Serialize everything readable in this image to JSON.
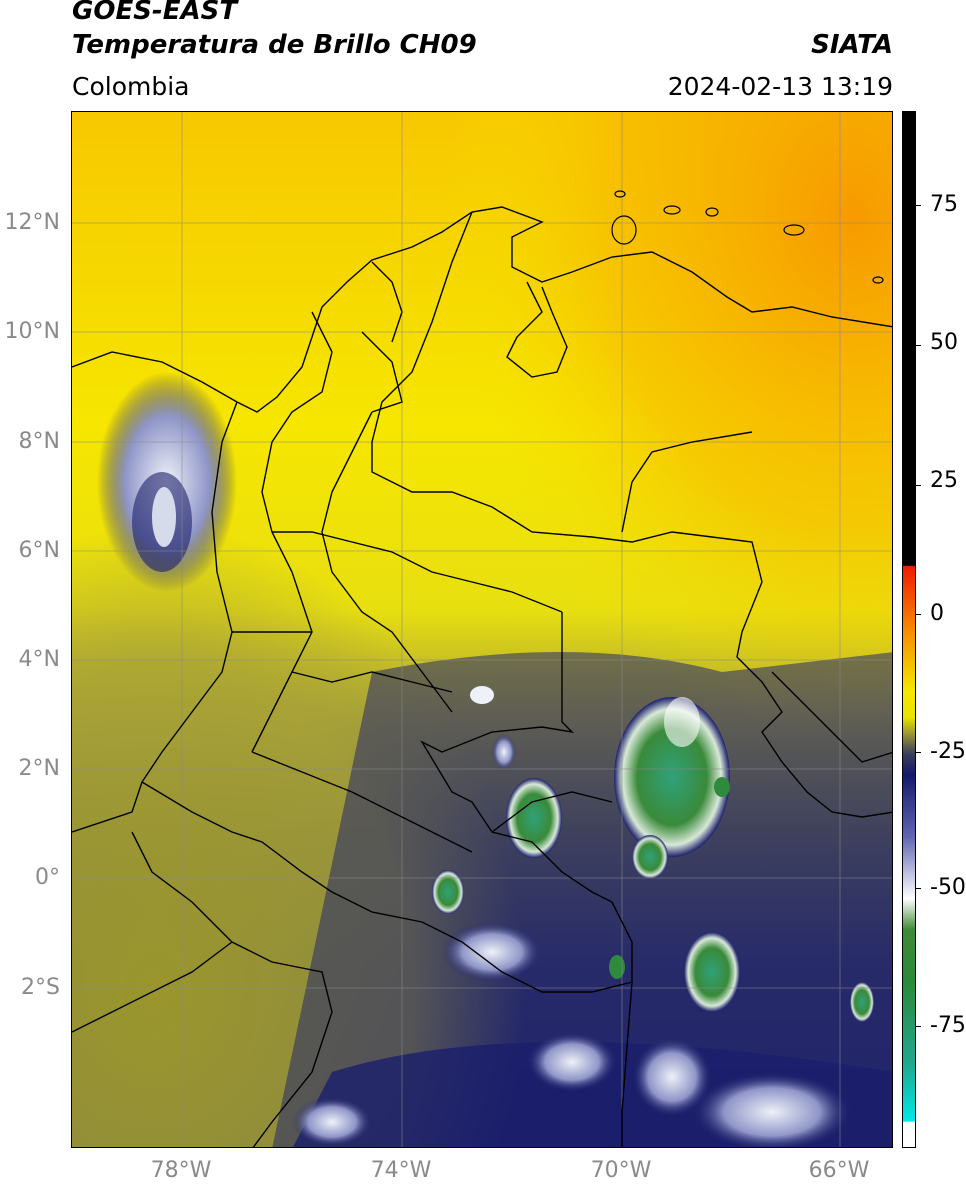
{
  "header": {
    "title_line1": "GOES-EAST",
    "title_line2": "Temperatura de Brillo CH09",
    "brand": "SIATA",
    "region": "Colombia",
    "timestamp": "2024-02-13 13:19"
  },
  "map": {
    "lat_labels": [
      "12°N",
      "10°N",
      "8°N",
      "6°N",
      "4°N",
      "2°N",
      "0°",
      "2°S"
    ],
    "lon_labels": [
      "78°W",
      "74°W",
      "70°W",
      "66°W"
    ],
    "colors": {
      "warm_yellow": "#f6e600",
      "orange": "#f7a800",
      "olive": "#9e9a2a",
      "navy": "#1c1f6b",
      "cloud_white": "#e8ecf4",
      "deep_convection_green": "#2e8a3c",
      "teal": "#22a888"
    }
  },
  "colorbar": {
    "label_values": [
      "75",
      "50",
      "25",
      "0",
      "-25",
      "-50",
      "-75"
    ],
    "range": [
      -95,
      90
    ],
    "unit_hint": "°C"
  }
}
